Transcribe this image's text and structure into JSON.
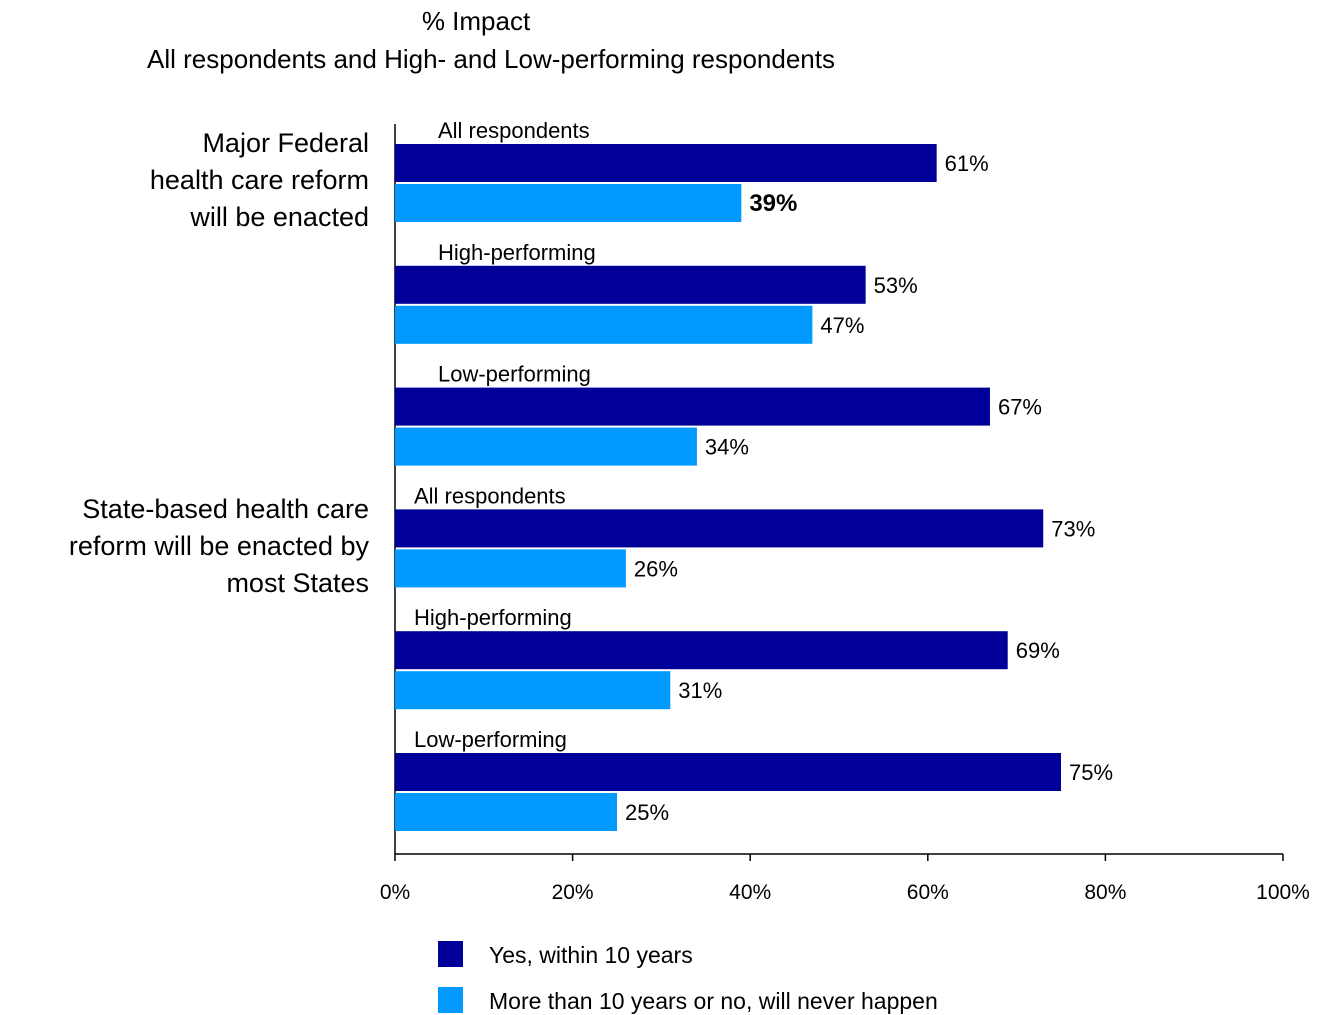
{
  "chart_data": {
    "type": "bar",
    "orientation": "horizontal",
    "title": "% Impact",
    "subtitle": "All respondents and High- and Low-performing respondents",
    "xlim": [
      0,
      100
    ],
    "x_ticks": [
      "0%",
      "20%",
      "40%",
      "60%",
      "80%",
      "100%"
    ],
    "grid": false,
    "legend_position": "bottom",
    "groups": [
      {
        "label": "Major Federal health care reform will be enacted",
        "label_lines": [
          "Major Federal",
          "health care reform",
          "will be enacted"
        ],
        "subgroups": [
          {
            "label": "All respondents",
            "values": [
              61,
              39
            ],
            "value_labels": [
              "61%",
              "39%"
            ],
            "bold": [
              false,
              true
            ]
          },
          {
            "label": "High-performing",
            "values": [
              53,
              47
            ],
            "value_labels": [
              "53%",
              "47%"
            ],
            "bold": [
              false,
              false
            ]
          },
          {
            "label": "Low-performing",
            "values": [
              67,
              34
            ],
            "value_labels": [
              "67%",
              "34%"
            ],
            "bold": [
              false,
              false
            ]
          }
        ]
      },
      {
        "label": "State-based health care reform will be enacted by most States",
        "label_lines": [
          "State-based health care",
          "reform will be enacted by",
          "most States"
        ],
        "subgroups": [
          {
            "label": "All respondents",
            "values": [
              73,
              26
            ],
            "value_labels": [
              "73%",
              "26%"
            ],
            "bold": [
              false,
              false
            ]
          },
          {
            "label": "High-performing",
            "values": [
              69,
              31
            ],
            "value_labels": [
              "69%",
              "31%"
            ],
            "bold": [
              false,
              false
            ]
          },
          {
            "label": "Low-performing",
            "values": [
              75,
              25
            ],
            "value_labels": [
              "75%",
              "25%"
            ],
            "bold": [
              false,
              false
            ]
          }
        ]
      }
    ],
    "series": [
      {
        "name": "Yes, within 10 years",
        "color": "#000099"
      },
      {
        "name": "More than 10 years or no, will never happen",
        "color": "#0099FF"
      }
    ]
  }
}
